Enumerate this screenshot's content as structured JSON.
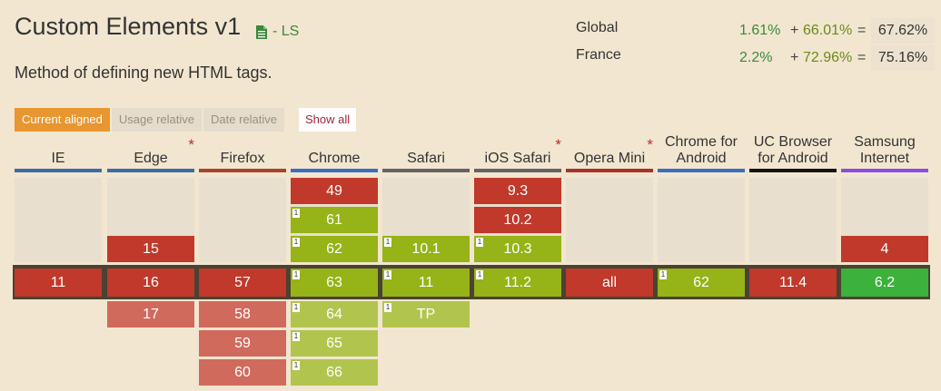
{
  "title": "Custom Elements v1",
  "status": "- LS",
  "description": "Method of defining new HTML tags.",
  "usage": [
    {
      "label": "Global",
      "full": "1.61%",
      "plus": "+",
      "partial": "66.01%",
      "eq": "=",
      "total": "67.62%"
    },
    {
      "label": "France",
      "full": "2.2%",
      "plus": "+",
      "partial": "72.96%",
      "eq": "=",
      "total": "75.16%"
    }
  ],
  "tabs": [
    "Current aligned",
    "Usage relative",
    "Date relative"
  ],
  "show_all": "Show all",
  "colors": {
    "unsupported": "#c0392b",
    "partial": "#96b317",
    "supported": "#3cb13c",
    "accent": "#e8962f",
    "background": "#f2e6d0"
  },
  "browsers": [
    {
      "name": "IE",
      "star": "",
      "bar": "#3d6ba4"
    },
    {
      "name": "Edge",
      "star": "*",
      "bar": "#3d6ba4"
    },
    {
      "name": "Firefox",
      "star": "",
      "bar": "#a9432a"
    },
    {
      "name": "Chrome",
      "star": "",
      "bar": "#3a6fc0"
    },
    {
      "name": "Safari",
      "star": "",
      "bar": "#646464"
    },
    {
      "name": "iOS Safari",
      "star": "*",
      "bar": "#646464"
    },
    {
      "name": "Opera Mini",
      "star": "*",
      "bar": "#a9322a"
    },
    {
      "name": "Chrome for Android",
      "star": "",
      "bar": "#3a6fc0"
    },
    {
      "name": "UC Browser for Android",
      "star": "",
      "bar": "#141414"
    },
    {
      "name": "Samsung Internet",
      "star": "",
      "bar": "#8a4fe0"
    }
  ],
  "past": [
    [],
    [
      {
        "v": "15",
        "s": "n"
      }
    ],
    [],
    [
      {
        "v": "49",
        "s": "n"
      },
      {
        "v": "61",
        "s": "y",
        "note": "1"
      },
      {
        "v": "62",
        "s": "y",
        "note": "1"
      }
    ],
    [
      {
        "v": "10.1",
        "s": "y",
        "note": "1"
      }
    ],
    [
      {
        "v": "9.3",
        "s": "n"
      },
      {
        "v": "10.2",
        "s": "n"
      },
      {
        "v": "10.3",
        "s": "y",
        "note": "1"
      }
    ],
    [],
    [],
    [],
    [
      {
        "v": "4",
        "s": "n"
      }
    ]
  ],
  "current": [
    {
      "v": "11",
      "s": "n"
    },
    {
      "v": "16",
      "s": "n"
    },
    {
      "v": "57",
      "s": "n"
    },
    {
      "v": "63",
      "s": "y",
      "note": "1"
    },
    {
      "v": "11",
      "s": "y",
      "note": "1"
    },
    {
      "v": "11.2",
      "s": "y",
      "note": "1"
    },
    {
      "v": "all",
      "s": "n"
    },
    {
      "v": "62",
      "s": "y",
      "note": "1"
    },
    {
      "v": "11.4",
      "s": "n"
    },
    {
      "v": "6.2",
      "s": "g"
    }
  ],
  "future": [
    [],
    [
      {
        "v": "17",
        "s": "np"
      }
    ],
    [
      {
        "v": "58",
        "s": "np"
      },
      {
        "v": "59",
        "s": "np"
      },
      {
        "v": "60",
        "s": "np"
      }
    ],
    [
      {
        "v": "64",
        "s": "yp",
        "note": "1"
      },
      {
        "v": "65",
        "s": "yp",
        "note": "1"
      },
      {
        "v": "66",
        "s": "yp",
        "note": "1"
      }
    ],
    [
      {
        "v": "TP",
        "s": "yp",
        "note": "1"
      }
    ],
    [],
    [],
    [],
    [],
    []
  ]
}
